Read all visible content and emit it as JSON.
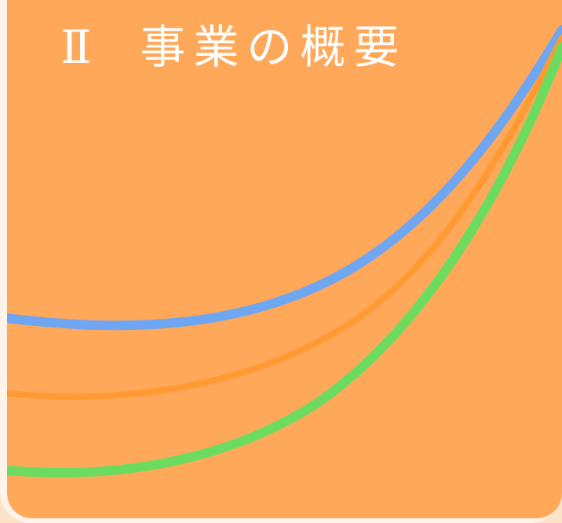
{
  "section": {
    "numeral": "Ⅱ",
    "title": "事業の概要"
  },
  "colors": {
    "background": "#fde3c8",
    "frame": "#fff4ea",
    "panel": "#ffa85a",
    "title_text": "#ffffff",
    "curve_blue": "#6fa6f2",
    "curve_orange": "#ff9a33",
    "curve_green": "#6cdc60"
  }
}
